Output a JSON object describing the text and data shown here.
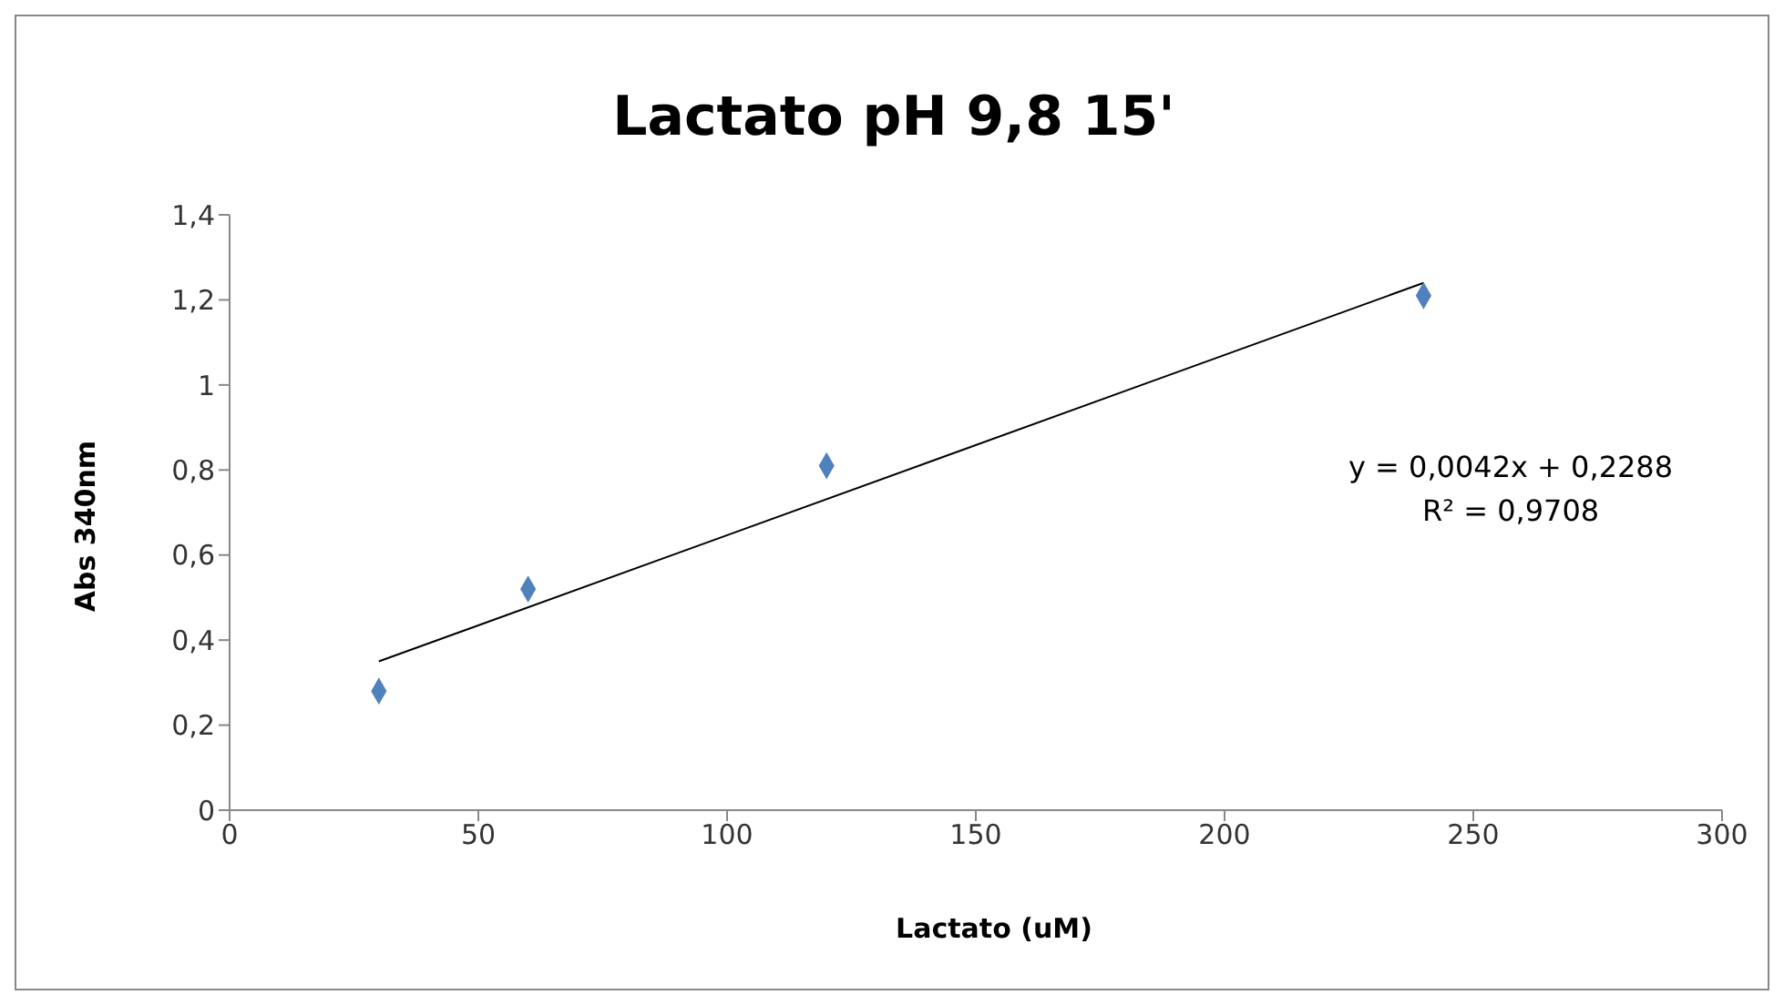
{
  "chart_data": {
    "type": "scatter",
    "title": "Lactato pH 9,8 15'",
    "xlabel": "Lactato (uM)",
    "ylabel": "Abs 340nm",
    "xlim": [
      0,
      300
    ],
    "xticks": [
      0,
      50,
      100,
      150,
      200,
      250,
      300
    ],
    "ylim": [
      0,
      1.4
    ],
    "yticks": [
      0,
      {
        "value": 0.2,
        "label": "0,2"
      },
      {
        "value": 0.4,
        "label": "0,4"
      },
      {
        "value": 0.6,
        "label": "0,6"
      },
      {
        "value": 0.8,
        "label": "0,8"
      },
      1,
      {
        "value": 1.2,
        "label": "1,2"
      },
      {
        "value": 1.4,
        "label": "1,4"
      }
    ],
    "series": [
      {
        "color": "#4f81bd",
        "marker": "diamond",
        "x": [
          30,
          60,
          120,
          240
        ],
        "values": [
          0.28,
          0.52,
          0.81,
          1.21
        ]
      },
      {
        "type": "line",
        "color": "#000000",
        "marker": "none",
        "line_style": "solid",
        "x": [
          30,
          240
        ],
        "values": [
          0.35,
          1.24
        ]
      }
    ],
    "annotations": [
      "y = 0,0042x + 0,2288",
      "R² = 0,9708"
    ]
  }
}
